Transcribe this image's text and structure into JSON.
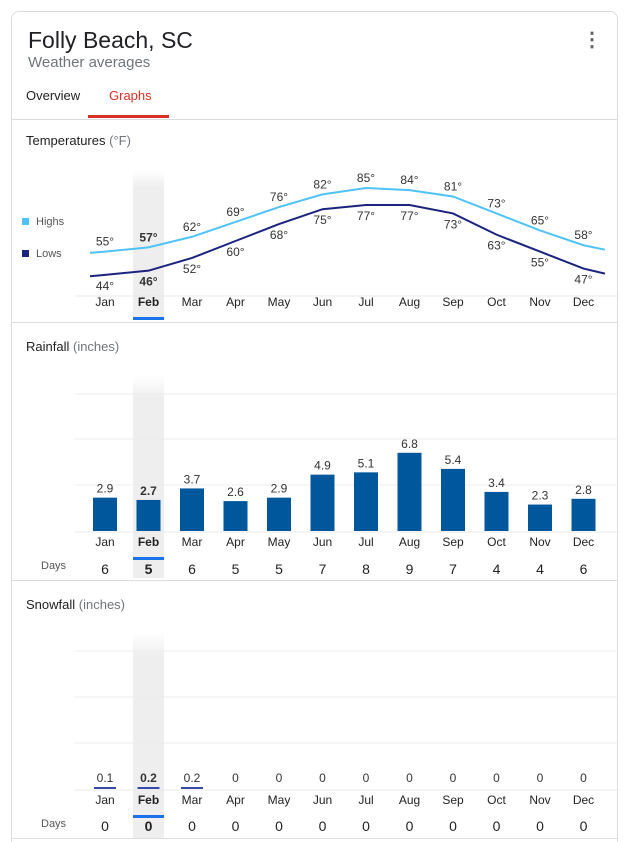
{
  "header": {
    "title": "Folly Beach, SC",
    "subtitle": "Weather averages",
    "menu_icon": "more-vert-icon"
  },
  "tabs": [
    {
      "label": "Overview",
      "active": false
    },
    {
      "label": "Graphs",
      "active": true
    }
  ],
  "colors": {
    "accent": "#d93025",
    "highs": "#4fc3f7",
    "lows": "#1a237e",
    "bars": "#01579b",
    "selected": "#1a73e8"
  },
  "selected_month": "Feb",
  "months": [
    "Jan",
    "Feb",
    "Mar",
    "Apr",
    "May",
    "Jun",
    "Jul",
    "Aug",
    "Sep",
    "Oct",
    "Nov",
    "Dec"
  ],
  "temperatures": {
    "title": "Temperatures",
    "unit": "(°F)",
    "legend": {
      "highs": "Highs",
      "lows": "Lows"
    }
  },
  "rainfall": {
    "title": "Rainfall",
    "unit": "(inches)",
    "days_label": "Days"
  },
  "snowfall": {
    "title": "Snowfall",
    "unit": "(inches)",
    "days_label": "Days"
  },
  "chart_data": [
    {
      "type": "line",
      "title": "Temperatures (°F)",
      "categories": [
        "Jan",
        "Feb",
        "Mar",
        "Apr",
        "May",
        "Jun",
        "Jul",
        "Aug",
        "Sep",
        "Oct",
        "Nov",
        "Dec"
      ],
      "series": [
        {
          "name": "Highs",
          "values": [
            55,
            57,
            62,
            69,
            76,
            82,
            85,
            84,
            81,
            73,
            65,
            58
          ]
        },
        {
          "name": "Lows",
          "values": [
            44,
            46,
            52,
            60,
            68,
            75,
            77,
            77,
            73,
            63,
            55,
            47
          ]
        }
      ],
      "legend": "left"
    },
    {
      "type": "bar",
      "title": "Rainfall (inches)",
      "categories": [
        "Jan",
        "Feb",
        "Mar",
        "Apr",
        "May",
        "Jun",
        "Jul",
        "Aug",
        "Sep",
        "Oct",
        "Nov",
        "Dec"
      ],
      "values": [
        2.9,
        2.7,
        3.7,
        2.6,
        2.9,
        4.9,
        5.1,
        6.8,
        5.4,
        3.4,
        2.3,
        2.8
      ],
      "days": [
        6,
        5,
        6,
        5,
        5,
        7,
        8,
        9,
        7,
        4,
        4,
        6
      ],
      "ylim": [
        0,
        12
      ],
      "grid": true
    },
    {
      "type": "bar",
      "title": "Snowfall (inches)",
      "categories": [
        "Jan",
        "Feb",
        "Mar",
        "Apr",
        "May",
        "Jun",
        "Jul",
        "Aug",
        "Sep",
        "Oct",
        "Nov",
        "Dec"
      ],
      "values": [
        0.1,
        0.2,
        0.2,
        0,
        0,
        0,
        0,
        0,
        0,
        0,
        0,
        0
      ],
      "days": [
        0,
        0,
        0,
        0,
        0,
        0,
        0,
        0,
        0,
        0,
        0,
        0
      ],
      "grid": true
    }
  ]
}
